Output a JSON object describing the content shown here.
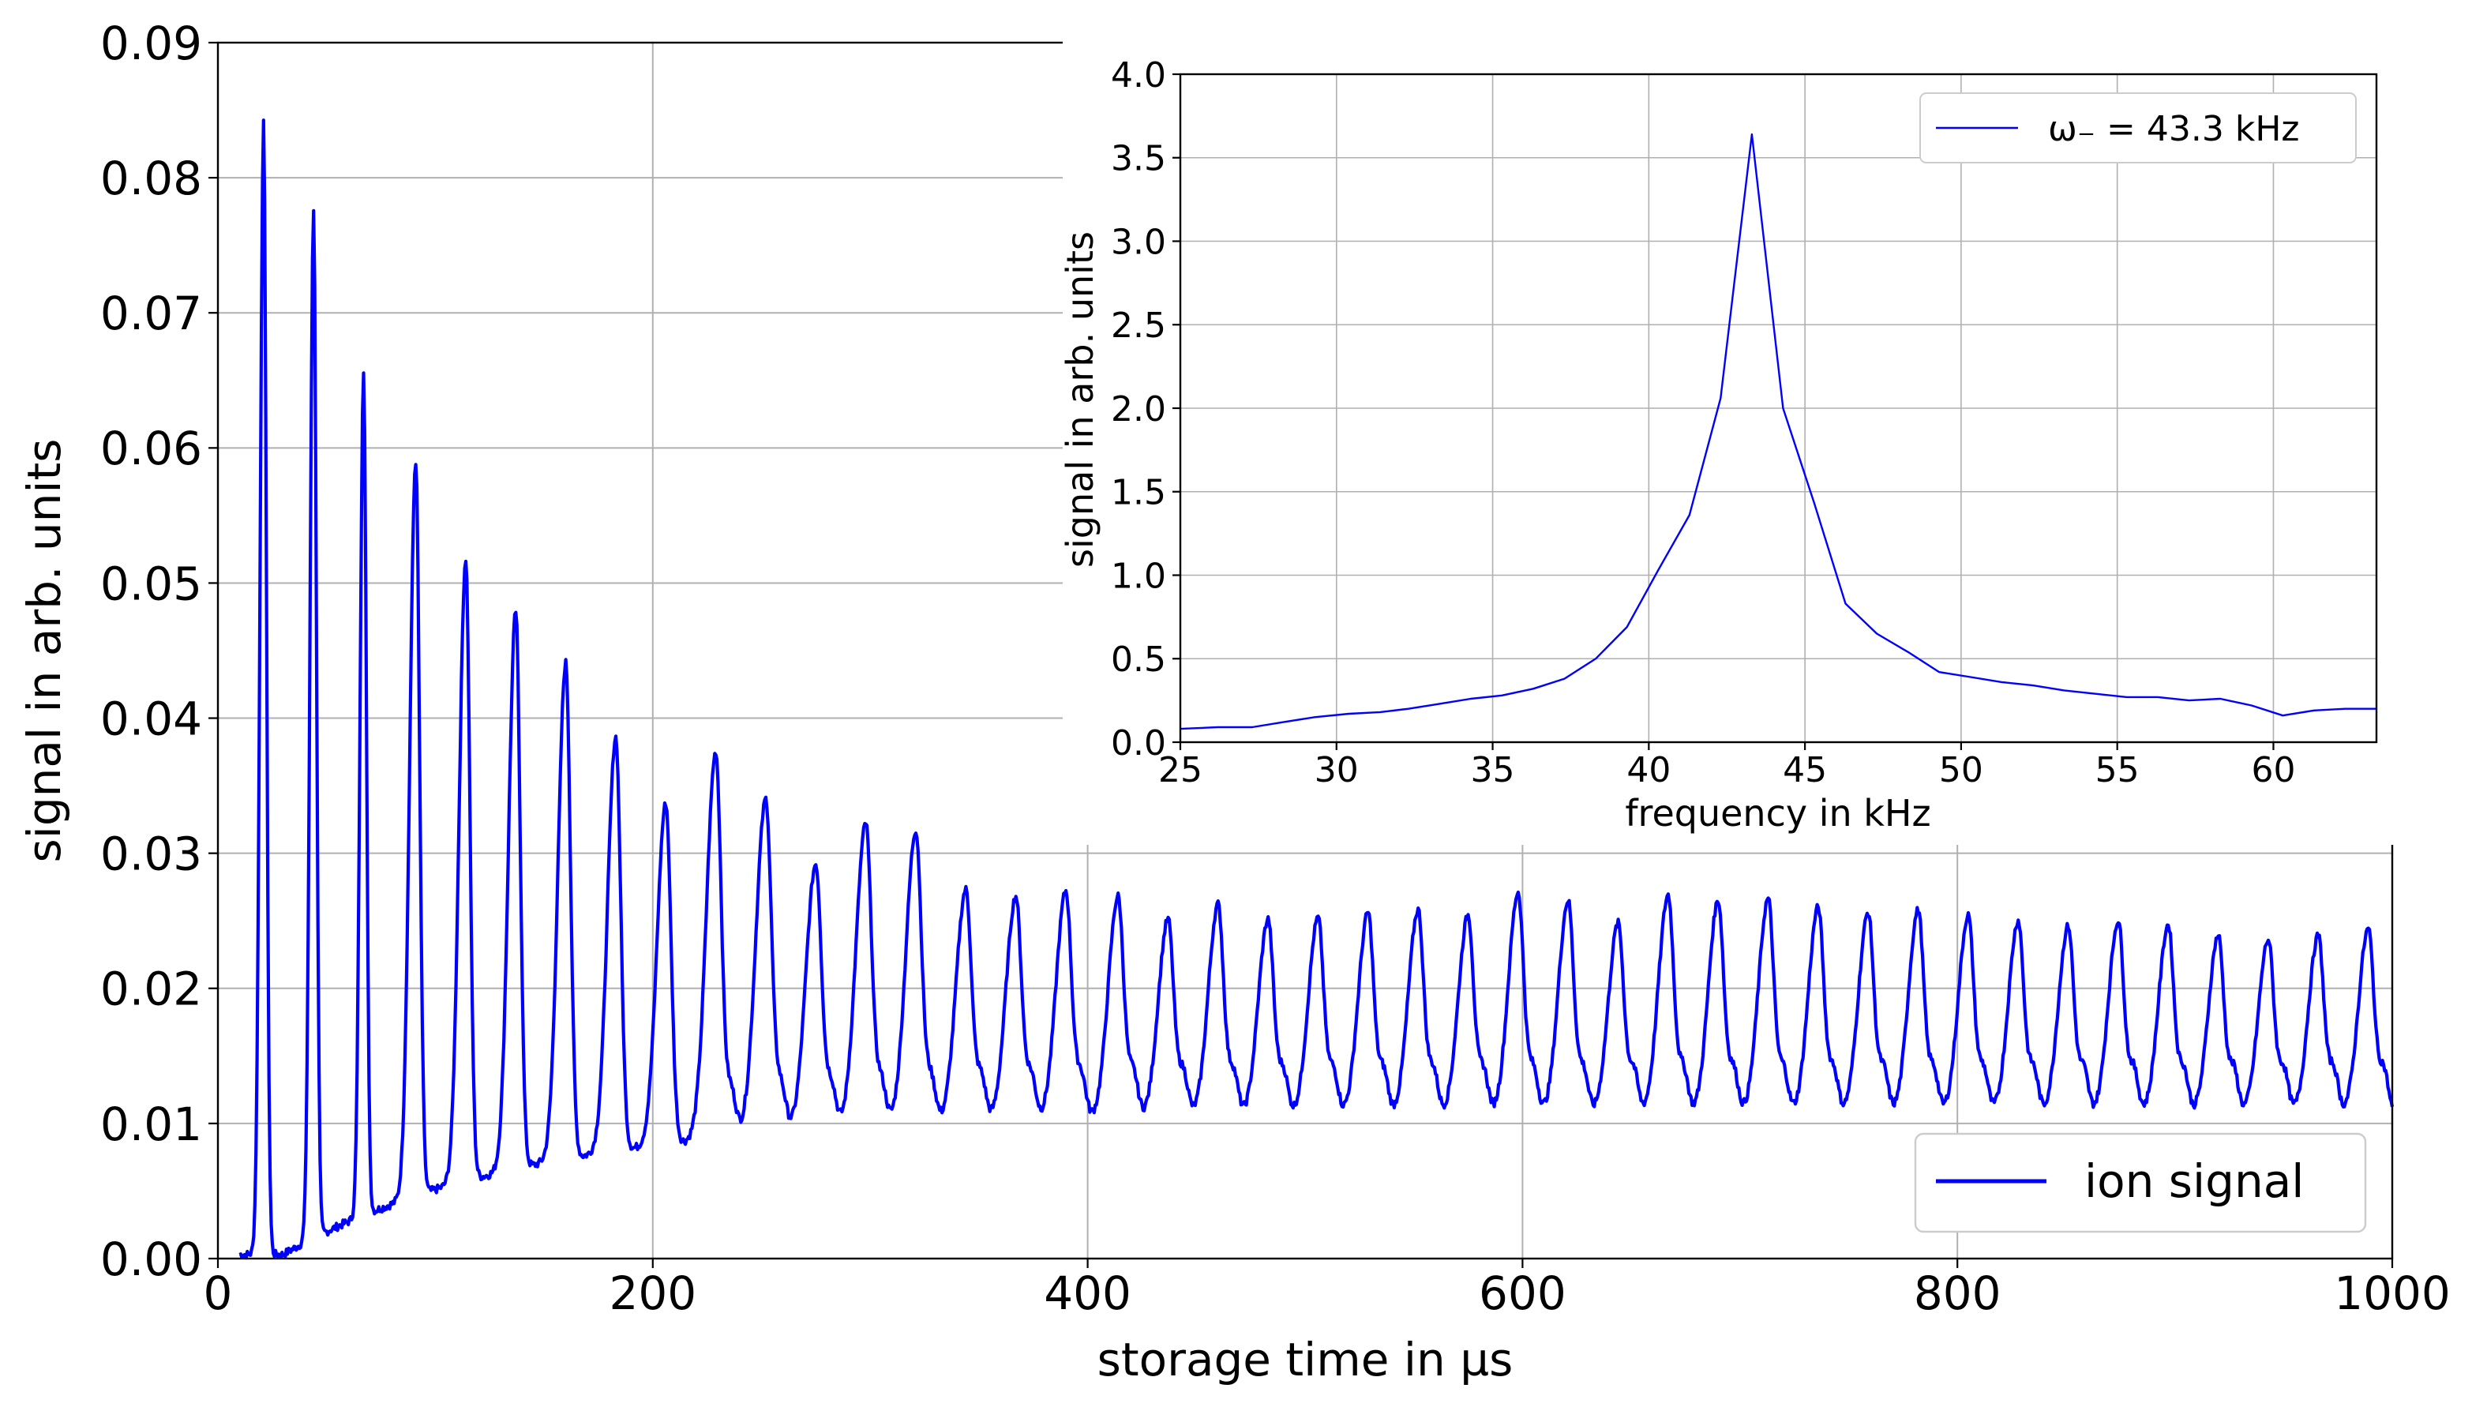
{
  "chart_data": [
    {
      "id": "main",
      "type": "line",
      "title": "",
      "xlabel": "storage time in µs",
      "ylabel": "signal in arb. units",
      "xlim": [
        0,
        1000
      ],
      "ylim": [
        0,
        0.09
      ],
      "xticks": [
        0,
        200,
        400,
        600,
        800,
        1000
      ],
      "xtick_labels": [
        "0",
        "200",
        "400",
        "600",
        "800",
        "1000"
      ],
      "yticks": [
        0,
        0.01,
        0.02,
        0.03,
        0.04,
        0.05,
        0.06,
        0.07,
        0.08,
        0.09
      ],
      "ytick_labels": [
        "0.00",
        "0.01",
        "0.02",
        "0.03",
        "0.04",
        "0.05",
        "0.06",
        "0.07",
        "0.08",
        "0.09"
      ],
      "grid": true,
      "legend_position": "lower-right",
      "series": [
        {
          "name": "ion signal",
          "color": "#0000ff",
          "x_start": 10,
          "period": 23.1,
          "baseline": 0.0105,
          "baseline_start": 0.0003,
          "peak_x": [
            21,
            44,
            67,
            91,
            114,
            137,
            160,
            183,
            206,
            229,
            252,
            275,
            298,
            321,
            344,
            367,
            390,
            414,
            437,
            460,
            483,
            506,
            529,
            552,
            575,
            598,
            621,
            644,
            667,
            690,
            713,
            736,
            759,
            782,
            805,
            828,
            851,
            874,
            897,
            920,
            943,
            966,
            989
          ],
          "peak_values": [
            0.084,
            0.0777,
            0.0658,
            0.059,
            0.0518,
            0.0479,
            0.0441,
            0.0386,
            0.0337,
            0.0375,
            0.034,
            0.0292,
            0.0322,
            0.0317,
            0.0273,
            0.0268,
            0.0272,
            0.0268,
            0.0251,
            0.0262,
            0.0251,
            0.0252,
            0.0256,
            0.0258,
            0.0254,
            0.0271,
            0.0265,
            0.0248,
            0.0269,
            0.0265,
            0.0266,
            0.026,
            0.0256,
            0.0258,
            0.0254,
            0.025,
            0.0246,
            0.025,
            0.0247,
            0.0239,
            0.0236,
            0.0239,
            0.0244
          ]
        }
      ]
    },
    {
      "id": "inset",
      "type": "line",
      "title": "",
      "xlabel": "frequency in kHz",
      "ylabel": "signal in arb. units",
      "xlim": [
        25,
        63.3
      ],
      "ylim": [
        0,
        4.0
      ],
      "xticks": [
        25,
        30,
        35,
        40,
        45,
        50,
        55,
        60
      ],
      "xtick_labels": [
        "25",
        "30",
        "35",
        "40",
        "45",
        "50",
        "55",
        "60"
      ],
      "yticks": [
        0,
        0.5,
        1.0,
        1.5,
        2.0,
        2.5,
        3.0,
        3.5,
        4.0
      ],
      "ytick_labels": [
        "0.0",
        "0.5",
        "1.0",
        "1.5",
        "2.0",
        "2.5",
        "3.0",
        "3.5",
        "4.0"
      ],
      "grid": true,
      "legend_position": "top-right",
      "series": [
        {
          "name": "ω₋ = 43.3 kHz",
          "color": "#0000ff",
          "x": [
            25.0,
            26.2,
            27.3,
            28.3,
            29.3,
            30.4,
            31.4,
            32.3,
            33.3,
            34.3,
            35.3,
            36.3,
            37.3,
            38.3,
            39.3,
            40.3,
            41.3,
            42.3,
            43.3,
            44.3,
            45.3,
            46.3,
            47.3,
            48.3,
            49.3,
            50.3,
            51.3,
            52.3,
            53.3,
            54.3,
            55.3,
            56.3,
            57.3,
            58.3,
            59.3,
            60.3,
            61.3,
            62.3,
            63.3
          ],
          "y": [
            0.08,
            0.09,
            0.09,
            0.12,
            0.15,
            0.17,
            0.18,
            0.2,
            0.23,
            0.26,
            0.28,
            0.32,
            0.38,
            0.5,
            0.69,
            1.03,
            1.36,
            2.06,
            3.64,
            2.0,
            1.43,
            0.83,
            0.65,
            0.54,
            0.42,
            0.39,
            0.36,
            0.34,
            0.31,
            0.29,
            0.27,
            0.27,
            0.25,
            0.26,
            0.22,
            0.16,
            0.19,
            0.2,
            0.2
          ]
        }
      ]
    }
  ]
}
